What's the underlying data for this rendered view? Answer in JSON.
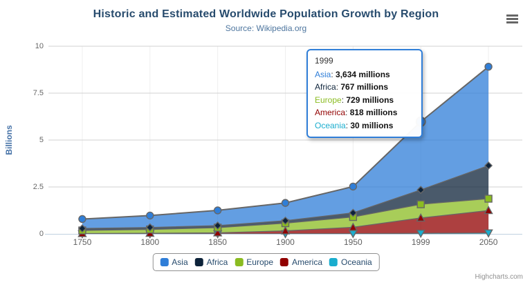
{
  "header": {
    "title": "Historic and Estimated Worldwide Population Growth by Region",
    "subtitle": "Source: Wikipedia.org"
  },
  "chart_data": {
    "type": "area",
    "stacking": "normal",
    "title": "Historic and Estimated Worldwide Population Growth by Region",
    "subtitle": "Source: Wikipedia.org",
    "categories": [
      "1750",
      "1800",
      "1850",
      "1900",
      "1950",
      "1999",
      "2050"
    ],
    "unit": "millions",
    "series": [
      {
        "name": "Asia",
        "color": "#2f7ed8",
        "marker": "circle",
        "values": [
          502,
          635,
          809,
          947,
          1402,
          3634,
          5268
        ]
      },
      {
        "name": "Africa",
        "color": "#0d233a",
        "marker": "diamond",
        "values": [
          106,
          107,
          111,
          133,
          221,
          767,
          1766
        ]
      },
      {
        "name": "Europe",
        "color": "#8bbc21",
        "marker": "square",
        "values": [
          163,
          203,
          276,
          408,
          547,
          729,
          628
        ]
      },
      {
        "name": "America",
        "color": "#910000",
        "marker": "triangle",
        "values": [
          18,
          31,
          54,
          156,
          339,
          818,
          1201
        ]
      },
      {
        "name": "Oceania",
        "color": "#1aadce",
        "marker": "triangle-down",
        "values": [
          2,
          2,
          2,
          6,
          13,
          30,
          46
        ]
      }
    ],
    "stack_order_bottom_to_top": [
      "Oceania",
      "America",
      "Europe",
      "Africa",
      "Asia"
    ],
    "yaxis": {
      "title": "Billions",
      "ticks": [
        0,
        2.5,
        5,
        7.5,
        10
      ],
      "tick_labels": [
        "0",
        "2.5",
        "5",
        "7.5",
        "10"
      ],
      "min": 0,
      "max": 10
    },
    "xlabel": "",
    "ylabel": "Billions",
    "legend_position": "bottom",
    "grid": true,
    "fill_opacity": 0.75,
    "line_color": "#666666"
  },
  "tooltip": {
    "header": "1999",
    "hover_series": "Asia",
    "border_color": "#2f7ed8",
    "rows": [
      {
        "name": "Asia",
        "color": "#2f7ed8",
        "value": "3,634 millions"
      },
      {
        "name": "Africa",
        "color": "#0d233a",
        "value": "767 millions"
      },
      {
        "name": "Europe",
        "color": "#8bbc21",
        "value": "729 millions"
      },
      {
        "name": "America",
        "color": "#910000",
        "value": "818 millions"
      },
      {
        "name": "Oceania",
        "color": "#1aadce",
        "value": "30 millions"
      }
    ]
  },
  "credits": {
    "label": "Highcharts.com"
  },
  "colors": {
    "title": "#274b6d",
    "subtitle": "#4d759e",
    "axis_label": "#666666",
    "yaxis_title": "#4572a7",
    "gridline": "#d0d0d0",
    "x_gridline": "#efefef",
    "axis_line": "#c0d0e0",
    "legend_border": "#909090",
    "legend_text": "#274b6d"
  }
}
